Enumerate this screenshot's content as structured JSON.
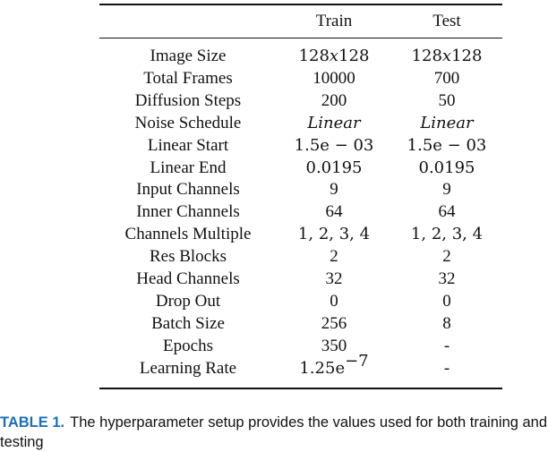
{
  "table": {
    "headers": [
      "",
      "Train",
      "Test"
    ],
    "rows": [
      {
        "name": "Image Size",
        "train": "128x128",
        "test": "128x128",
        "train_fmt": "math-x",
        "test_fmt": "math-x"
      },
      {
        "name": "Total Frames",
        "train": "10000",
        "test": "700"
      },
      {
        "name": "Diffusion Steps",
        "train": "200",
        "test": "50"
      },
      {
        "name": "Noise Schedule",
        "train": "Linear",
        "test": "Linear",
        "train_fmt": "math-it",
        "test_fmt": "math-it"
      },
      {
        "name": "Linear Start",
        "train": "1.5e − 03",
        "test": "1.5e − 03",
        "train_fmt": "math",
        "test_fmt": "math"
      },
      {
        "name": "Linear End",
        "train": "0.0195",
        "test": "0.0195",
        "train_fmt": "math",
        "test_fmt": "math"
      },
      {
        "name": "Input Channels",
        "train": "9",
        "test": "9"
      },
      {
        "name": "Inner Channels",
        "train": "64",
        "test": "64"
      },
      {
        "name": "Channels Multiple",
        "train": "1, 2, 3, 4",
        "test": "1, 2, 3, 4",
        "train_fmt": "math",
        "test_fmt": "math"
      },
      {
        "name": "Res Blocks",
        "train": "2",
        "test": "2"
      },
      {
        "name": "Head Channels",
        "train": "32",
        "test": "32"
      },
      {
        "name": "Drop Out",
        "train": "0",
        "test": "0"
      },
      {
        "name": "Batch Size",
        "train": "256",
        "test": "8"
      },
      {
        "name": "Epochs",
        "train": "350",
        "test": "-"
      },
      {
        "name": "Learning Rate",
        "train": "1.25e",
        "train_sup": "−7",
        "test": "-",
        "train_fmt": "math"
      }
    ]
  },
  "caption": {
    "label": "TABLE 1.",
    "text": "The hyperparameter setup provides the values used for both training and testing"
  }
}
